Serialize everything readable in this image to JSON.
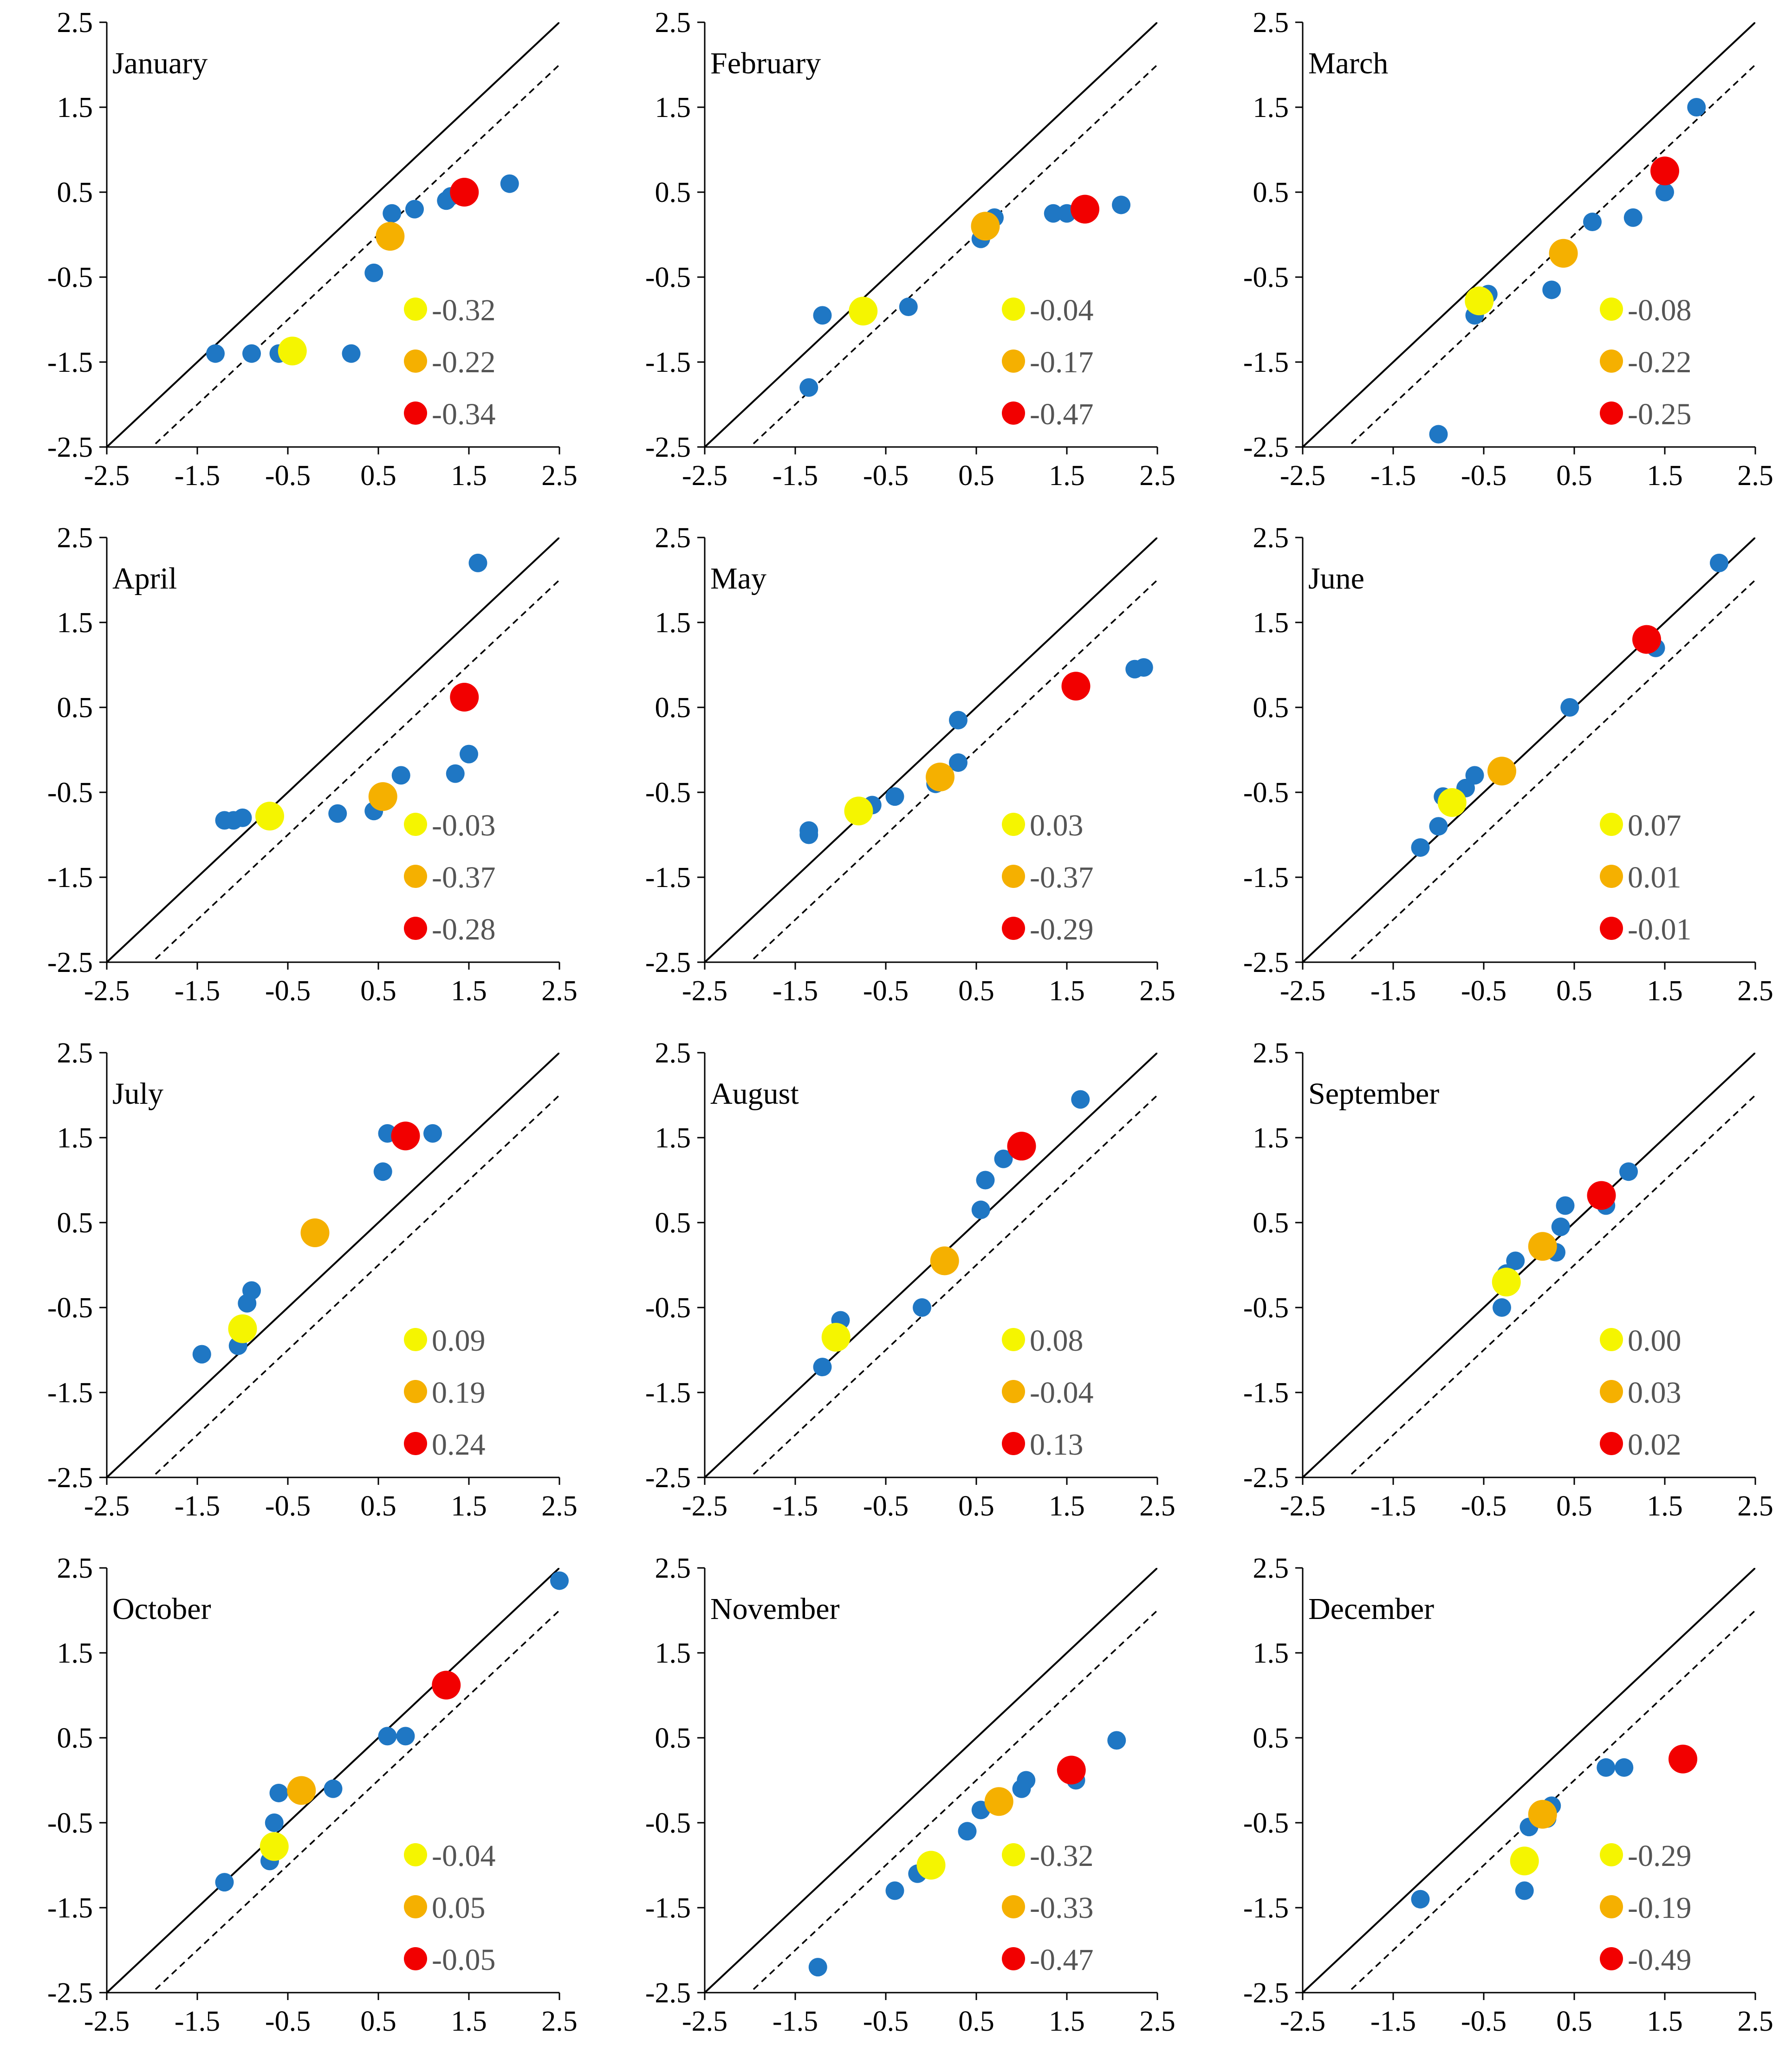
{
  "colors": {
    "blue": "#1f77c4",
    "yellow": "#f5f500",
    "orange": "#f5b000",
    "red": "#f20000",
    "legend_text": "#555555",
    "axis": "#000000"
  },
  "chart_data": [
    {
      "type": "scatter",
      "title": "January",
      "xlim": [
        -2.5,
        2.5
      ],
      "ylim": [
        -2.5,
        2.5
      ],
      "ticks": [
        "-2.5",
        "-1.5",
        "-0.5",
        "0.5",
        "1.5",
        "2.5"
      ],
      "reference_lines": [
        {
          "style": "solid",
          "offset": 0
        },
        {
          "style": "dashed",
          "offset": -0.5
        }
      ],
      "blue_points": [
        [
          -1.3,
          -1.4
        ],
        [
          -0.9,
          -1.4
        ],
        [
          -0.6,
          -1.4
        ],
        [
          0.2,
          -1.4
        ],
        [
          0.45,
          -0.45
        ],
        [
          0.65,
          0.25
        ],
        [
          0.9,
          0.3
        ],
        [
          1.25,
          0.4
        ],
        [
          1.3,
          0.45
        ],
        [
          1.95,
          0.6
        ]
      ],
      "highlight_points": [
        {
          "color": "yellow",
          "x": -0.45,
          "y": -1.37
        },
        {
          "color": "orange",
          "x": 0.63,
          "y": -0.02
        },
        {
          "color": "red",
          "x": 1.45,
          "y": 0.5
        }
      ],
      "legend": [
        {
          "color": "yellow",
          "label": "-0.32"
        },
        {
          "color": "orange",
          "label": "-0.22"
        },
        {
          "color": "red",
          "label": "-0.34"
        }
      ]
    },
    {
      "type": "scatter",
      "title": "February",
      "xlim": [
        -2.5,
        2.5
      ],
      "ylim": [
        -2.5,
        2.5
      ],
      "ticks": [
        "-2.5",
        "-1.5",
        "-0.5",
        "0.5",
        "1.5",
        "2.5"
      ],
      "reference_lines": [
        {
          "style": "solid",
          "offset": 0
        },
        {
          "style": "dashed",
          "offset": -0.5
        }
      ],
      "blue_points": [
        [
          -1.35,
          -1.8
        ],
        [
          -1.2,
          -0.95
        ],
        [
          -0.25,
          -0.85
        ],
        [
          0.55,
          -0.05
        ],
        [
          0.7,
          0.2
        ],
        [
          1.35,
          0.25
        ],
        [
          1.5,
          0.25
        ],
        [
          2.1,
          0.35
        ]
      ],
      "highlight_points": [
        {
          "color": "yellow",
          "x": -0.75,
          "y": -0.9
        },
        {
          "color": "orange",
          "x": 0.6,
          "y": 0.1
        },
        {
          "color": "red",
          "x": 1.7,
          "y": 0.3
        }
      ],
      "legend": [
        {
          "color": "yellow",
          "label": "-0.04"
        },
        {
          "color": "orange",
          "label": "-0.17"
        },
        {
          "color": "red",
          "label": "-0.47"
        }
      ]
    },
    {
      "type": "scatter",
      "title": "March",
      "xlim": [
        -2.5,
        2.5
      ],
      "ylim": [
        -2.5,
        2.5
      ],
      "ticks": [
        "-2.5",
        "-1.5",
        "-0.5",
        "0.5",
        "1.5",
        "2.5"
      ],
      "reference_lines": [
        {
          "style": "solid",
          "offset": 0
        },
        {
          "style": "dashed",
          "offset": -0.5
        }
      ],
      "blue_points": [
        [
          -1.0,
          -2.35
        ],
        [
          -0.6,
          -0.95
        ],
        [
          -0.45,
          -0.7
        ],
        [
          0.25,
          -0.65
        ],
        [
          0.7,
          0.15
        ],
        [
          1.15,
          0.2
        ],
        [
          1.5,
          0.5
        ],
        [
          1.85,
          1.5
        ]
      ],
      "highlight_points": [
        {
          "color": "yellow",
          "x": -0.55,
          "y": -0.78
        },
        {
          "color": "orange",
          "x": 0.38,
          "y": -0.22
        },
        {
          "color": "red",
          "x": 1.5,
          "y": 0.75
        }
      ],
      "legend": [
        {
          "color": "yellow",
          "label": "-0.08"
        },
        {
          "color": "orange",
          "label": "-0.22"
        },
        {
          "color": "red",
          "label": "-0.25"
        }
      ]
    },
    {
      "type": "scatter",
      "title": "April",
      "xlim": [
        -2.5,
        2.5
      ],
      "ylim": [
        -2.5,
        2.5
      ],
      "ticks": [
        "-2.5",
        "-1.5",
        "-0.5",
        "0.5",
        "1.5",
        "2.5"
      ],
      "reference_lines": [
        {
          "style": "solid",
          "offset": 0
        },
        {
          "style": "dashed",
          "offset": -0.5
        }
      ],
      "blue_points": [
        [
          -1.2,
          -0.83
        ],
        [
          -1.1,
          -0.83
        ],
        [
          -1.0,
          -0.8
        ],
        [
          0.05,
          -0.75
        ],
        [
          0.45,
          -0.72
        ],
        [
          0.75,
          -0.3
        ],
        [
          1.35,
          -0.28
        ],
        [
          1.5,
          -0.05
        ],
        [
          1.6,
          2.2
        ]
      ],
      "highlight_points": [
        {
          "color": "yellow",
          "x": -0.7,
          "y": -0.78
        },
        {
          "color": "orange",
          "x": 0.55,
          "y": -0.55
        },
        {
          "color": "red",
          "x": 1.45,
          "y": 0.62
        }
      ],
      "legend": [
        {
          "color": "yellow",
          "label": "-0.03"
        },
        {
          "color": "orange",
          "label": "-0.37"
        },
        {
          "color": "red",
          "label": "-0.28"
        }
      ]
    },
    {
      "type": "scatter",
      "title": "May",
      "xlim": [
        -2.5,
        2.5
      ],
      "ylim": [
        -2.5,
        2.5
      ],
      "ticks": [
        "-2.5",
        "-1.5",
        "-0.5",
        "0.5",
        "1.5",
        "2.5"
      ],
      "reference_lines": [
        {
          "style": "solid",
          "offset": 0
        },
        {
          "style": "dashed",
          "offset": -0.5
        }
      ],
      "blue_points": [
        [
          -1.35,
          -1.0
        ],
        [
          -1.35,
          -0.95
        ],
        [
          -0.65,
          -0.65
        ],
        [
          -0.4,
          -0.55
        ],
        [
          0.05,
          -0.4
        ],
        [
          0.3,
          -0.15
        ],
        [
          0.3,
          0.35
        ],
        [
          2.25,
          0.95
        ],
        [
          2.35,
          0.97
        ]
      ],
      "highlight_points": [
        {
          "color": "yellow",
          "x": -0.8,
          "y": -0.72
        },
        {
          "color": "orange",
          "x": 0.1,
          "y": -0.32
        },
        {
          "color": "red",
          "x": 1.6,
          "y": 0.75
        }
      ],
      "legend": [
        {
          "color": "yellow",
          "label": "0.03"
        },
        {
          "color": "orange",
          "label": "-0.37"
        },
        {
          "color": "red",
          "label": "-0.29"
        }
      ]
    },
    {
      "type": "scatter",
      "title": "June",
      "xlim": [
        -2.5,
        2.5
      ],
      "ylim": [
        -2.5,
        2.5
      ],
      "ticks": [
        "-2.5",
        "-1.5",
        "-0.5",
        "0.5",
        "1.5",
        "2.5"
      ],
      "reference_lines": [
        {
          "style": "solid",
          "offset": 0
        },
        {
          "style": "dashed",
          "offset": -0.5
        }
      ],
      "blue_points": [
        [
          -1.2,
          -1.15
        ],
        [
          -1.0,
          -0.9
        ],
        [
          -0.95,
          -0.55
        ],
        [
          -0.7,
          -0.45
        ],
        [
          -0.6,
          -0.3
        ],
        [
          -0.35,
          -0.25
        ],
        [
          0.45,
          0.5
        ],
        [
          1.4,
          1.2
        ],
        [
          2.1,
          2.2
        ]
      ],
      "highlight_points": [
        {
          "color": "yellow",
          "x": -0.85,
          "y": -0.62
        },
        {
          "color": "orange",
          "x": -0.3,
          "y": -0.25
        },
        {
          "color": "red",
          "x": 1.3,
          "y": 1.3
        }
      ],
      "legend": [
        {
          "color": "yellow",
          "label": "0.07"
        },
        {
          "color": "orange",
          "label": "0.01"
        },
        {
          "color": "red",
          "label": "-0.01"
        }
      ]
    },
    {
      "type": "scatter",
      "title": "July",
      "xlim": [
        -2.5,
        2.5
      ],
      "ylim": [
        -2.5,
        2.5
      ],
      "ticks": [
        "-2.5",
        "-1.5",
        "-0.5",
        "0.5",
        "1.5",
        "2.5"
      ],
      "reference_lines": [
        {
          "style": "solid",
          "offset": 0
        },
        {
          "style": "dashed",
          "offset": -0.5
        }
      ],
      "blue_points": [
        [
          -1.45,
          -1.05
        ],
        [
          -1.05,
          -0.95
        ],
        [
          -0.95,
          -0.45
        ],
        [
          -0.9,
          -0.3
        ],
        [
          0.55,
          1.1
        ],
        [
          0.6,
          1.55
        ],
        [
          1.1,
          1.55
        ]
      ],
      "highlight_points": [
        {
          "color": "yellow",
          "x": -1.0,
          "y": -0.75
        },
        {
          "color": "orange",
          "x": -0.2,
          "y": 0.38
        },
        {
          "color": "red",
          "x": 0.8,
          "y": 1.52
        }
      ],
      "legend": [
        {
          "color": "yellow",
          "label": "0.09"
        },
        {
          "color": "orange",
          "label": "0.19"
        },
        {
          "color": "red",
          "label": "0.24"
        }
      ]
    },
    {
      "type": "scatter",
      "title": "August",
      "xlim": [
        -2.5,
        2.5
      ],
      "ylim": [
        -2.5,
        2.5
      ],
      "ticks": [
        "-2.5",
        "-1.5",
        "-0.5",
        "0.5",
        "1.5",
        "2.5"
      ],
      "reference_lines": [
        {
          "style": "solid",
          "offset": 0
        },
        {
          "style": "dashed",
          "offset": -0.5
        }
      ],
      "blue_points": [
        [
          -1.2,
          -1.2
        ],
        [
          -1.0,
          -0.65
        ],
        [
          -0.1,
          -0.5
        ],
        [
          0.1,
          0.05
        ],
        [
          0.55,
          0.65
        ],
        [
          0.6,
          1.0
        ],
        [
          0.8,
          1.25
        ],
        [
          1.65,
          1.95
        ]
      ],
      "highlight_points": [
        {
          "color": "yellow",
          "x": -1.05,
          "y": -0.85
        },
        {
          "color": "orange",
          "x": 0.15,
          "y": 0.05
        },
        {
          "color": "red",
          "x": 1.0,
          "y": 1.4
        }
      ],
      "legend": [
        {
          "color": "yellow",
          "label": "0.08"
        },
        {
          "color": "orange",
          "label": "-0.04"
        },
        {
          "color": "red",
          "label": "0.13"
        }
      ]
    },
    {
      "type": "scatter",
      "title": "September",
      "xlim": [
        -2.5,
        2.5
      ],
      "ylim": [
        -2.5,
        2.5
      ],
      "ticks": [
        "-2.5",
        "-1.5",
        "-0.5",
        "0.5",
        "1.5",
        "2.5"
      ],
      "reference_lines": [
        {
          "style": "solid",
          "offset": 0
        },
        {
          "style": "dashed",
          "offset": -0.5
        }
      ],
      "blue_points": [
        [
          -0.3,
          -0.5
        ],
        [
          -0.25,
          -0.1
        ],
        [
          -0.15,
          0.05
        ],
        [
          0.3,
          0.15
        ],
        [
          0.35,
          0.45
        ],
        [
          0.4,
          0.7
        ],
        [
          0.85,
          0.7
        ],
        [
          1.1,
          1.1
        ]
      ],
      "highlight_points": [
        {
          "color": "yellow",
          "x": -0.25,
          "y": -0.2
        },
        {
          "color": "orange",
          "x": 0.15,
          "y": 0.22
        },
        {
          "color": "red",
          "x": 0.8,
          "y": 0.82
        }
      ],
      "legend": [
        {
          "color": "yellow",
          "label": "0.00"
        },
        {
          "color": "orange",
          "label": "0.03"
        },
        {
          "color": "red",
          "label": "0.02"
        }
      ]
    },
    {
      "type": "scatter",
      "title": "October",
      "xlim": [
        -2.5,
        2.5
      ],
      "ylim": [
        -2.5,
        2.5
      ],
      "ticks": [
        "-2.5",
        "-1.5",
        "-0.5",
        "0.5",
        "1.5",
        "2.5"
      ],
      "reference_lines": [
        {
          "style": "solid",
          "offset": 0
        },
        {
          "style": "dashed",
          "offset": -0.5
        }
      ],
      "blue_points": [
        [
          -1.2,
          -1.2
        ],
        [
          -0.7,
          -0.95
        ],
        [
          -0.65,
          -0.5
        ],
        [
          -0.6,
          -0.15
        ],
        [
          -0.3,
          -0.1
        ],
        [
          0.0,
          -0.1
        ],
        [
          0.6,
          0.52
        ],
        [
          0.8,
          0.52
        ],
        [
          2.5,
          2.35
        ]
      ],
      "highlight_points": [
        {
          "color": "yellow",
          "x": -0.65,
          "y": -0.78
        },
        {
          "color": "orange",
          "x": -0.35,
          "y": -0.12
        },
        {
          "color": "red",
          "x": 1.25,
          "y": 1.12
        }
      ],
      "legend": [
        {
          "color": "yellow",
          "label": "-0.04"
        },
        {
          "color": "orange",
          "label": "0.05"
        },
        {
          "color": "red",
          "label": "-0.05"
        }
      ]
    },
    {
      "type": "scatter",
      "title": "November",
      "xlim": [
        -2.5,
        2.5
      ],
      "ylim": [
        -2.5,
        2.5
      ],
      "ticks": [
        "-2.5",
        "-1.5",
        "-0.5",
        "0.5",
        "1.5",
        "2.5"
      ],
      "reference_lines": [
        {
          "style": "solid",
          "offset": 0
        },
        {
          "style": "dashed",
          "offset": -0.5
        }
      ],
      "blue_points": [
        [
          -1.25,
          -2.2
        ],
        [
          -0.4,
          -1.3
        ],
        [
          -0.15,
          -1.1
        ],
        [
          0.4,
          -0.6
        ],
        [
          0.55,
          -0.35
        ],
        [
          1.0,
          -0.1
        ],
        [
          1.05,
          0.0
        ],
        [
          1.6,
          0.0
        ],
        [
          2.05,
          0.47
        ]
      ],
      "highlight_points": [
        {
          "color": "yellow",
          "x": 0.0,
          "y": -1.0
        },
        {
          "color": "orange",
          "x": 0.75,
          "y": -0.25
        },
        {
          "color": "red",
          "x": 1.55,
          "y": 0.12
        }
      ],
      "legend": [
        {
          "color": "yellow",
          "label": "-0.32"
        },
        {
          "color": "orange",
          "label": "-0.33"
        },
        {
          "color": "red",
          "label": "-0.47"
        }
      ]
    },
    {
      "type": "scatter",
      "title": "December",
      "xlim": [
        -2.5,
        2.5
      ],
      "ylim": [
        -2.5,
        2.5
      ],
      "ticks": [
        "-2.5",
        "-1.5",
        "-0.5",
        "0.5",
        "1.5",
        "2.5"
      ],
      "reference_lines": [
        {
          "style": "solid",
          "offset": 0
        },
        {
          "style": "dashed",
          "offset": -0.5
        }
      ],
      "blue_points": [
        [
          -1.2,
          -1.4
        ],
        [
          -0.05,
          -1.3
        ],
        [
          0.0,
          -0.55
        ],
        [
          0.2,
          -0.45
        ],
        [
          0.25,
          -0.3
        ],
        [
          0.85,
          0.15
        ],
        [
          1.05,
          0.15
        ]
      ],
      "highlight_points": [
        {
          "color": "yellow",
          "x": -0.05,
          "y": -0.95
        },
        {
          "color": "orange",
          "x": 0.15,
          "y": -0.4
        },
        {
          "color": "red",
          "x": 1.7,
          "y": 0.25
        }
      ],
      "legend": [
        {
          "color": "yellow",
          "label": "-0.29"
        },
        {
          "color": "orange",
          "label": "-0.19"
        },
        {
          "color": "red",
          "label": "-0.49"
        }
      ]
    }
  ]
}
